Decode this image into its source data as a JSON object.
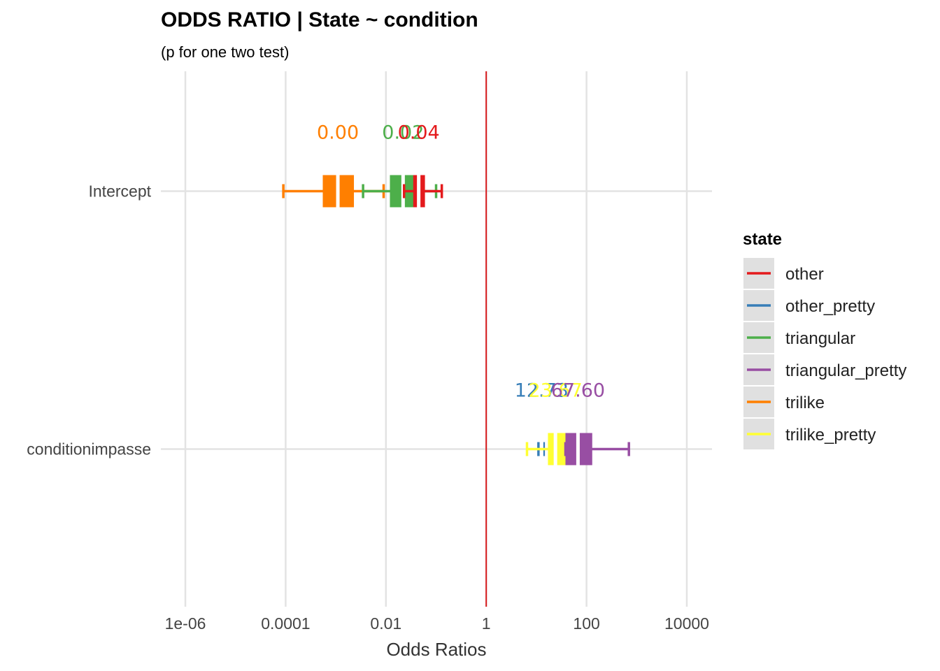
{
  "chart_data": {
    "type": "forest",
    "title": "ODDS RATIO | State ~ condition",
    "subtitle": "(p for one two test)",
    "xlabel": "Odds Ratios",
    "ylabel": "",
    "x_scale": "log10",
    "xlim": [
      1e-06,
      30000
    ],
    "x_ticks": [
      1e-06,
      0.0001,
      0.01,
      1,
      100,
      10000
    ],
    "x_tick_labels": [
      "1e-06",
      "0.0001",
      "0.01",
      "1",
      "100",
      "10000"
    ],
    "reference_line": 1,
    "reference_line_color": "#d7191c",
    "grid": true,
    "categories": [
      "Intercept",
      "conditionimpasse"
    ],
    "legend": {
      "title": "state",
      "position": "right",
      "entries": [
        "other",
        "other_pretty",
        "triangular",
        "triangular_pretty",
        "trilike",
        "trilike_pretty"
      ]
    },
    "series": [
      {
        "name": "trilike",
        "color": "#ff7f00",
        "points": [
          {
            "term": "Intercept",
            "whisker_low": 9e-05,
            "whisker_high": 0.009,
            "box_low": 0.00055,
            "box_high": 0.0023,
            "median": 0.0011,
            "label": "0.00"
          }
        ]
      },
      {
        "name": "triangular",
        "color": "#4daf4a",
        "points": [
          {
            "term": "Intercept",
            "whisker_low": 0.0035,
            "whisker_high": 0.1,
            "box_low": 0.012,
            "box_high": 0.042,
            "median": 0.022,
            "label": "0.02"
          }
        ]
      },
      {
        "name": "other",
        "color": "#e41a1c",
        "points": [
          {
            "term": "Intercept",
            "whisker_low": 0.023,
            "whisker_high": 0.13,
            "box_low": 0.035,
            "box_high": 0.06,
            "median": 0.045,
            "label": "0.04"
          }
        ]
      },
      {
        "name": "other_pretty",
        "color": "#377eb8",
        "points": [
          {
            "term": "conditionimpasse",
            "whisker_low": 11,
            "whisker_high": 14,
            "box_low": 12,
            "box_high": 13.5,
            "median": 12.7,
            "label": "12.73"
          }
        ]
      },
      {
        "name": "trilike_pretty",
        "color": "#ffff33",
        "points": [
          {
            "term": "conditionimpasse",
            "whisker_low": 6.5,
            "whisker_high": 40,
            "box_low": 17,
            "box_high": 38,
            "median": 24,
            "label": "23.67"
          }
        ]
      },
      {
        "name": "triangular_pretty",
        "color": "#984ea3",
        "points": [
          {
            "term": "conditionimpasse",
            "whisker_low": 38,
            "whisker_high": 700,
            "box_low": 38,
            "box_high": 130,
            "median": 67.6,
            "label": "67.60"
          }
        ]
      }
    ]
  }
}
